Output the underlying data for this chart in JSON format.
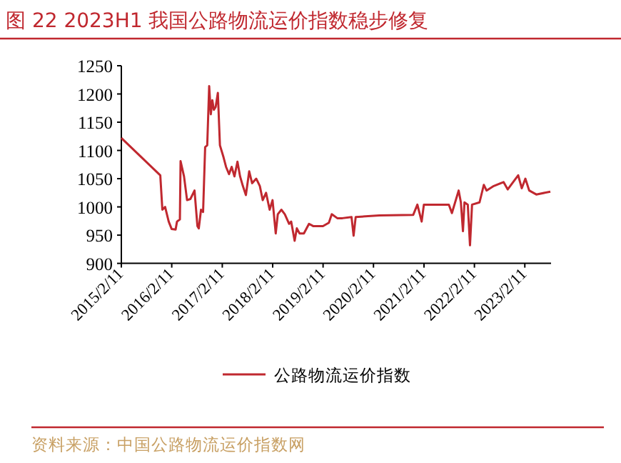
{
  "chart_data": {
    "type": "line",
    "title": "图 22 2023H1 我国公路物流运价指数稳步修复",
    "annotations": [
      "资料来源：中国公路物流运价指数网"
    ],
    "legend": "bottom",
    "grid": false,
    "marker": "none",
    "line_style": "solid",
    "xlim": [
      "2015-02-11",
      "2023-08-20"
    ],
    "xticks": [
      {
        "value": "2015-02-11",
        "label": "2015/2/11"
      },
      {
        "value": "2016-02-11",
        "label": "2016/2/11"
      },
      {
        "value": "2017-02-11",
        "label": "2017/2/11"
      },
      {
        "value": "2018-02-11",
        "label": "2018/2/11"
      },
      {
        "value": "2019-02-11",
        "label": "2019/2/11"
      },
      {
        "value": "2020-02-11",
        "label": "2020/2/11"
      },
      {
        "value": "2021-02-11",
        "label": "2021/2/11"
      },
      {
        "value": "2022-02-11",
        "label": "2022/2/11"
      },
      {
        "value": "2023-02-11",
        "label": "2023/2/11"
      }
    ],
    "ylim": [
      900,
      1250
    ],
    "yticks": [
      900,
      950,
      1000,
      1050,
      1100,
      1150,
      1200,
      1250
    ],
    "x": [
      "2015-02-11",
      "2015-11-20",
      "2015-12-05",
      "2015-12-25",
      "2016-01-20",
      "2016-02-10",
      "2016-03-10",
      "2016-03-20",
      "2016-04-10",
      "2016-04-15",
      "2016-05-10",
      "2016-06-01",
      "2016-06-25",
      "2016-07-25",
      "2016-08-15",
      "2016-08-25",
      "2016-09-10",
      "2016-09-25",
      "2016-10-10",
      "2016-10-25",
      "2016-11-08",
      "2016-11-20",
      "2016-12-01",
      "2016-12-12",
      "2016-12-25",
      "2017-01-10",
      "2017-01-25",
      "2017-02-20",
      "2017-03-10",
      "2017-04-01",
      "2017-04-20",
      "2017-05-10",
      "2017-06-01",
      "2017-06-20",
      "2017-07-10",
      "2017-08-01",
      "2017-08-25",
      "2017-09-15",
      "2017-10-15",
      "2017-11-10",
      "2017-12-01",
      "2017-12-25",
      "2018-01-20",
      "2018-02-10",
      "2018-03-05",
      "2018-03-20",
      "2018-04-15",
      "2018-05-10",
      "2018-06-10",
      "2018-06-25",
      "2018-07-20",
      "2018-08-05",
      "2018-08-25",
      "2018-09-25",
      "2018-11-01",
      "2018-12-01",
      "2019-02-10",
      "2019-03-25",
      "2019-04-15",
      "2019-05-25",
      "2019-07-01",
      "2019-09-05",
      "2019-09-20",
      "2019-10-05",
      "2020-03-25",
      "2020-11-25",
      "2020-12-25",
      "2021-01-25",
      "2021-02-10",
      "2021-08-10",
      "2021-09-01",
      "2021-10-20",
      "2021-11-05",
      "2021-11-20",
      "2021-12-01",
      "2021-12-25",
      "2022-01-10",
      "2022-01-25",
      "2022-03-20",
      "2022-04-20",
      "2022-05-10",
      "2022-07-01",
      "2022-09-10",
      "2022-10-10",
      "2022-12-25",
      "2023-01-20",
      "2023-02-15",
      "2023-03-15",
      "2023-05-05",
      "2023-08-15"
    ],
    "series": [
      {
        "name": "公路物流运价指数",
        "color": "#c0282f",
        "values": [
          1122,
          1056,
          995,
          1000,
          974,
          961,
          960,
          974,
          978,
          1081,
          1054,
          1012,
          1014,
          1029,
          966,
          962,
          995,
          991,
          1106,
          1109,
          1214,
          1164,
          1189,
          1172,
          1177,
          1202,
          1109,
          1088,
          1071,
          1058,
          1071,
          1054,
          1080,
          1054,
          1037,
          1021,
          1063,
          1042,
          1050,
          1037,
          1012,
          1025,
          995,
          1012,
          953,
          987,
          995,
          987,
          970,
          974,
          940,
          962,
          953,
          953,
          970,
          966,
          966,
          972,
          987,
          980,
          980,
          982,
          949,
          982,
          985,
          986,
          1004,
          974,
          1004,
          1004,
          989,
          1029,
          1008,
          957,
          1008,
          1004,
          932,
          1004,
          1008,
          1039,
          1029,
          1037,
          1044,
          1031,
          1056,
          1033,
          1050,
          1029,
          1022,
          1027
        ]
      }
    ]
  }
}
